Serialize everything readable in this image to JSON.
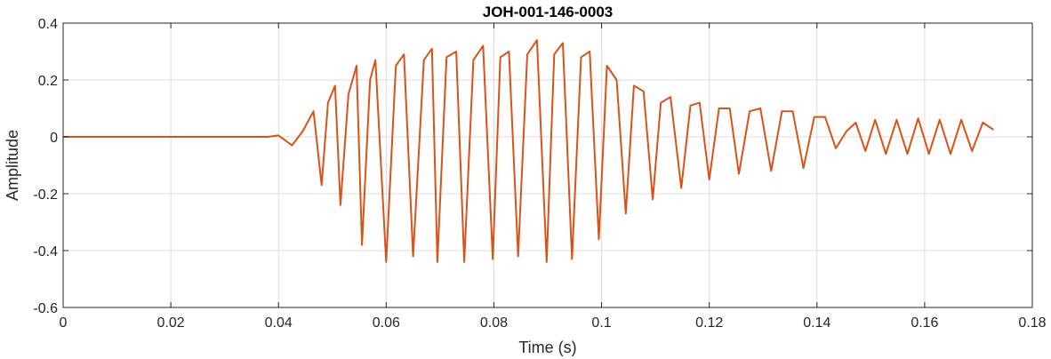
{
  "chart_data": {
    "type": "line",
    "title": "JOH-001-146-0003",
    "xlabel": "Time (s)",
    "ylabel": "Amplitude",
    "xlim": [
      0,
      0.18
    ],
    "ylim": [
      -0.6,
      0.4
    ],
    "xticks": [
      0,
      0.02,
      0.04,
      0.06,
      0.08,
      0.1,
      0.12,
      0.14,
      0.16,
      0.18
    ],
    "xtick_labels": [
      "0",
      "0.02",
      "0.04",
      "0.06",
      "0.08",
      "0.1",
      "0.12",
      "0.14",
      "0.16",
      "0.18"
    ],
    "yticks": [
      -0.6,
      -0.4,
      -0.2,
      0,
      0.2,
      0.4
    ],
    "ytick_labels": [
      "-0.6",
      "-0.4",
      "-0.2",
      "0",
      "0.2",
      "0.4"
    ],
    "grid": true,
    "legend": "none",
    "line_color": "#d95319",
    "grid_color": "#dcdcdc",
    "series": [
      {
        "x": [
          0,
          0.038,
          0.04,
          0.0425,
          0.0445,
          0.0465,
          0.048,
          0.0492,
          0.0505,
          0.0515,
          0.053,
          0.0545,
          0.0555,
          0.057,
          0.058,
          0.06,
          0.0618,
          0.0633,
          0.065,
          0.067,
          0.0685,
          0.0695,
          0.0712,
          0.073,
          0.0745,
          0.0762,
          0.078,
          0.0798,
          0.0812,
          0.0828,
          0.0845,
          0.0862,
          0.088,
          0.0898,
          0.0912,
          0.0928,
          0.0945,
          0.0962,
          0.0978,
          0.0995,
          0.101,
          0.1028,
          0.1045,
          0.106,
          0.1078,
          0.1095,
          0.111,
          0.1128,
          0.1148,
          0.1165,
          0.1182,
          0.12,
          0.1218,
          0.1238,
          0.1255,
          0.1275,
          0.1295,
          0.1315,
          0.1335,
          0.1355,
          0.1375,
          0.1395,
          0.1415,
          0.1435,
          0.1455,
          0.1472,
          0.149,
          0.1508,
          0.1528,
          0.1548,
          0.1568,
          0.1588,
          0.1608,
          0.1628,
          0.1648,
          0.1668,
          0.1688,
          0.1708,
          0.1728
        ],
        "y": [
          0,
          0,
          0.005,
          -0.03,
          0.02,
          0.09,
          -0.17,
          0.12,
          0.18,
          -0.24,
          0.15,
          0.25,
          -0.38,
          0.2,
          0.27,
          -0.44,
          0.25,
          0.29,
          -0.42,
          0.27,
          0.31,
          -0.44,
          0.28,
          0.3,
          -0.44,
          0.27,
          0.32,
          -0.43,
          0.28,
          0.3,
          -0.42,
          0.29,
          0.34,
          -0.44,
          0.29,
          0.33,
          -0.43,
          0.28,
          0.3,
          -0.36,
          0.25,
          0.2,
          -0.27,
          0.18,
          0.16,
          -0.22,
          0.12,
          0.14,
          -0.18,
          0.11,
          0.12,
          -0.15,
          0.1,
          0.1,
          -0.13,
          0.09,
          0.1,
          -0.12,
          0.09,
          0.09,
          -0.11,
          0.07,
          0.07,
          -0.04,
          0.02,
          0.05,
          -0.05,
          0.06,
          -0.06,
          0.06,
          -0.06,
          0.065,
          -0.06,
          0.06,
          -0.06,
          0.06,
          -0.05,
          0.05,
          0.025
        ]
      }
    ]
  }
}
